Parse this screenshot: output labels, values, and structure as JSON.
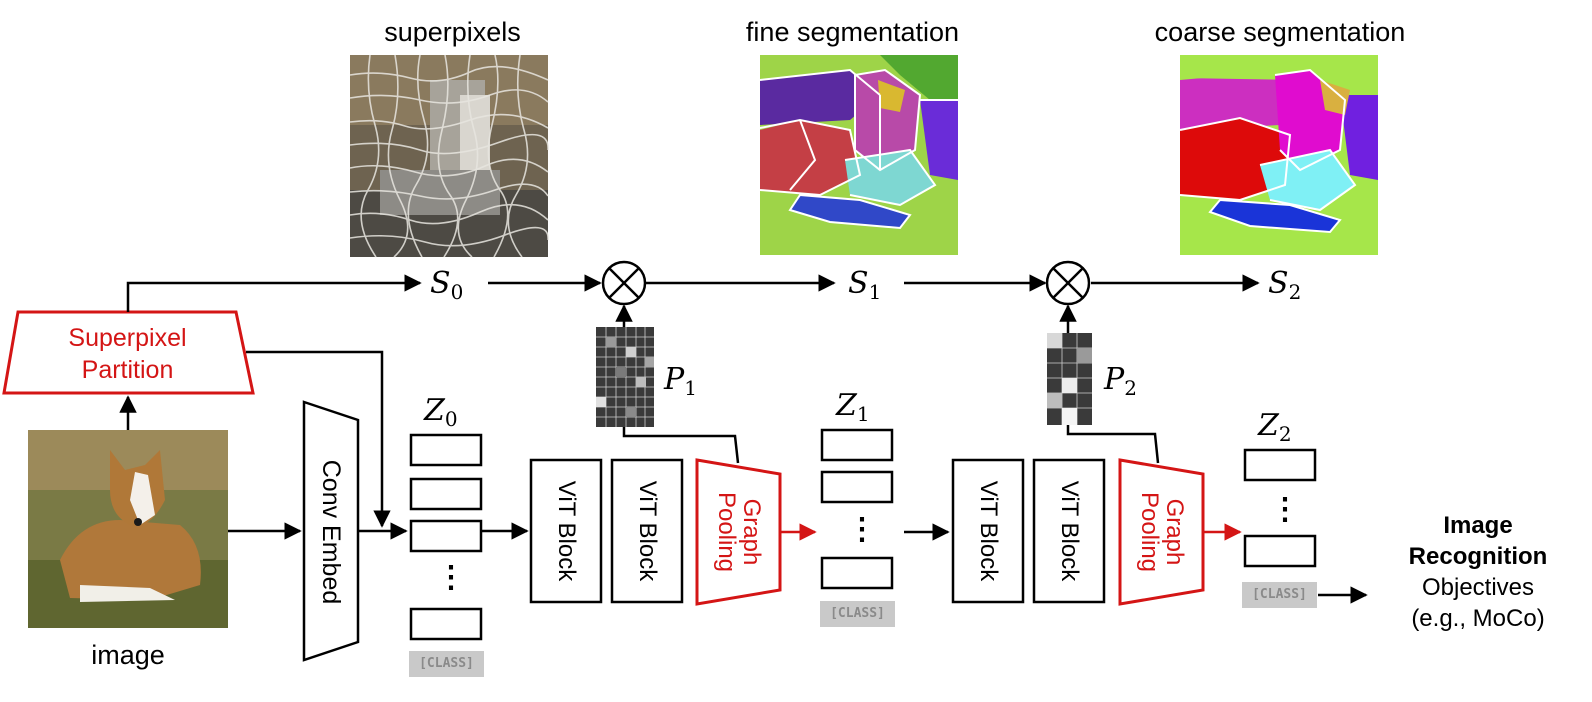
{
  "images": {
    "superpixels_title": "superpixels",
    "fine_title": "fine segmentation",
    "coarse_title": "coarse segmentation",
    "input_caption": "image"
  },
  "symbols": {
    "S0": {
      "base": "S",
      "sub": "0"
    },
    "S1": {
      "base": "S",
      "sub": "1"
    },
    "S2": {
      "base": "S",
      "sub": "2"
    },
    "P1": {
      "base": "P",
      "sub": "1"
    },
    "P2": {
      "base": "P",
      "sub": "2"
    },
    "Z0": {
      "base": "Z",
      "sub": "0"
    },
    "Z1": {
      "base": "Z",
      "sub": "1"
    },
    "Z2": {
      "base": "Z",
      "sub": "2"
    },
    "multiply": "⊗"
  },
  "blocks": {
    "superpixel_partition": "Superpixel Partition",
    "conv_embed": "Conv Embed",
    "vit_block": "ViT Block",
    "graph_pooling": "Graph Pooling"
  },
  "tokens": {
    "class_token": "[CLASS]",
    "ellipsis": "⋮"
  },
  "output": {
    "line1": "Image",
    "line2": "Recognition",
    "line3": "Objectives",
    "line4": "(e.g., MoCo)"
  },
  "colors": {
    "accent_red": "#d41515",
    "line": "#000000",
    "class_bg": "#c9c9c9"
  }
}
